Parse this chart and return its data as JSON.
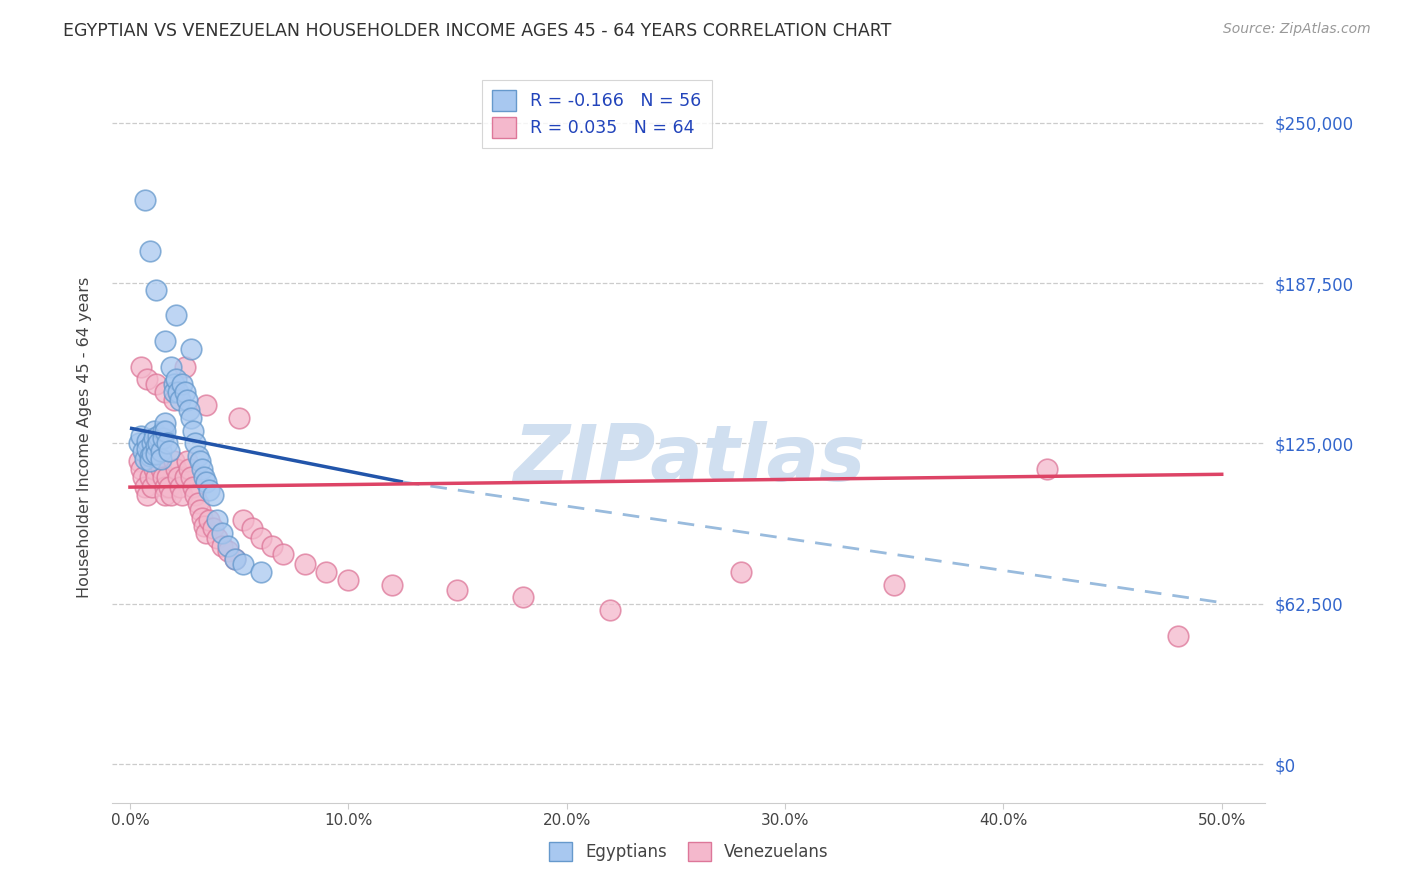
{
  "title": "EGYPTIAN VS VENEZUELAN HOUSEHOLDER INCOME AGES 45 - 64 YEARS CORRELATION CHART",
  "source": "Source: ZipAtlas.com",
  "ylabel": "Householder Income Ages 45 - 64 years",
  "ytick_vals": [
    0,
    62500,
    125000,
    187500,
    250000
  ],
  "ytick_labels": [
    "$0",
    "$62,500",
    "$125,000",
    "$187,500",
    "$250,000"
  ],
  "xlim": [
    -0.008,
    0.52
  ],
  "ylim": [
    -15000,
    270000
  ],
  "blue_R": "-0.166",
  "blue_N": "56",
  "pink_R": "0.035",
  "pink_N": "64",
  "blue_color": "#A8C8F0",
  "pink_color": "#F4B8CC",
  "blue_edge_color": "#6699CC",
  "pink_edge_color": "#DD7799",
  "blue_line_color": "#2255AA",
  "pink_line_color": "#DD4466",
  "dashed_line_color": "#99BBDD",
  "legend_text_color": "#2244BB",
  "watermark_color": "#D0DFF0",
  "right_tick_color": "#3366CC",
  "blue_line_x0": 0.0,
  "blue_line_y0": 131000,
  "blue_line_x1": 0.125,
  "blue_line_y1": 110000,
  "dash_line_x0": 0.125,
  "dash_line_y0": 110000,
  "dash_line_x1": 0.5,
  "dash_line_y1": 63000,
  "pink_line_x0": 0.0,
  "pink_line_y0": 108000,
  "pink_line_x1": 0.5,
  "pink_line_y1": 113000,
  "eg_x": [
    0.004,
    0.005,
    0.006,
    0.007,
    0.008,
    0.008,
    0.009,
    0.009,
    0.01,
    0.01,
    0.011,
    0.011,
    0.012,
    0.012,
    0.013,
    0.013,
    0.014,
    0.014,
    0.015,
    0.015,
    0.016,
    0.016,
    0.017,
    0.018,
    0.019,
    0.02,
    0.02,
    0.021,
    0.022,
    0.023,
    0.024,
    0.025,
    0.026,
    0.027,
    0.028,
    0.029,
    0.03,
    0.031,
    0.032,
    0.033,
    0.034,
    0.035,
    0.036,
    0.038,
    0.04,
    0.042,
    0.045,
    0.048,
    0.052,
    0.06,
    0.007,
    0.009,
    0.012,
    0.016,
    0.021,
    0.028
  ],
  "eg_y": [
    125000,
    128000,
    122000,
    119000,
    126000,
    123000,
    120000,
    118000,
    125000,
    121000,
    130000,
    127000,
    124000,
    121000,
    128000,
    125000,
    122000,
    119000,
    130000,
    127000,
    133000,
    130000,
    125000,
    122000,
    155000,
    148000,
    145000,
    150000,
    145000,
    142000,
    148000,
    145000,
    142000,
    138000,
    135000,
    130000,
    125000,
    120000,
    118000,
    115000,
    112000,
    110000,
    107000,
    105000,
    95000,
    90000,
    85000,
    80000,
    78000,
    75000,
    220000,
    200000,
    185000,
    165000,
    175000,
    162000
  ],
  "vn_x": [
    0.004,
    0.005,
    0.006,
    0.007,
    0.008,
    0.009,
    0.01,
    0.01,
    0.011,
    0.012,
    0.013,
    0.014,
    0.015,
    0.016,
    0.016,
    0.017,
    0.018,
    0.019,
    0.02,
    0.021,
    0.022,
    0.023,
    0.024,
    0.025,
    0.026,
    0.027,
    0.028,
    0.029,
    0.03,
    0.031,
    0.032,
    0.033,
    0.034,
    0.035,
    0.036,
    0.038,
    0.04,
    0.042,
    0.045,
    0.048,
    0.052,
    0.056,
    0.06,
    0.065,
    0.07,
    0.08,
    0.09,
    0.1,
    0.12,
    0.15,
    0.18,
    0.22,
    0.28,
    0.35,
    0.42,
    0.48,
    0.005,
    0.008,
    0.012,
    0.016,
    0.02,
    0.025,
    0.035,
    0.05
  ],
  "vn_y": [
    118000,
    115000,
    112000,
    108000,
    105000,
    112000,
    108000,
    118000,
    115000,
    112000,
    118000,
    115000,
    112000,
    108000,
    105000,
    112000,
    108000,
    105000,
    118000,
    115000,
    112000,
    108000,
    105000,
    112000,
    118000,
    115000,
    112000,
    108000,
    105000,
    102000,
    99000,
    96000,
    93000,
    90000,
    95000,
    92000,
    88000,
    85000,
    83000,
    80000,
    95000,
    92000,
    88000,
    85000,
    82000,
    78000,
    75000,
    72000,
    70000,
    68000,
    65000,
    60000,
    75000,
    70000,
    115000,
    50000,
    155000,
    150000,
    148000,
    145000,
    142000,
    155000,
    140000,
    135000
  ]
}
